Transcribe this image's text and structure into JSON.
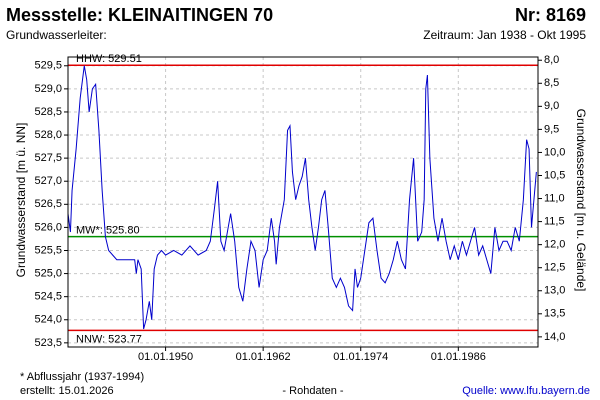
{
  "chart_data": {
    "type": "line",
    "title": "Messstelle: KLEINAITINGEN 70",
    "number": "Nr: 8169",
    "subtitle_left": "Grundwasserleiter:",
    "subtitle_right": "Zeitraum: Jan 1938 - Okt 1995",
    "ylabel": "Grundwasserstand [m ü. NN]",
    "y2label": "Grundwasserstand [m u. Gelände]",
    "footnote": "* Abflussjahr (1937-1994)",
    "created": "erstellt:  15.01.2026",
    "note": "- Rohdaten -",
    "source": "Quelle:  www.lfu.bayern.de",
    "color": "#0000cc",
    "grid": true,
    "xlim": [
      1938.0,
      1995.8
    ],
    "xticks": [
      {
        "value": 1950,
        "label": "01.01.1950"
      },
      {
        "value": 1962,
        "label": "01.01.1962"
      },
      {
        "value": 1974,
        "label": "01.01.1974"
      },
      {
        "value": 1986,
        "label": "01.01.1986"
      }
    ],
    "ylim": [
      523.41,
      529.69
    ],
    "yticks": [
      {
        "value": 523.5,
        "label": "523,5"
      },
      {
        "value": 524.0,
        "label": "524,0"
      },
      {
        "value": 524.5,
        "label": "524,5"
      },
      {
        "value": 525.0,
        "label": "525,0"
      },
      {
        "value": 525.5,
        "label": "525,5"
      },
      {
        "value": 526.0,
        "label": "526,0"
      },
      {
        "value": 526.5,
        "label": "526,5"
      },
      {
        "value": 527.0,
        "label": "527,0"
      },
      {
        "value": 527.5,
        "label": "527,5"
      },
      {
        "value": 528.0,
        "label": "528,0"
      },
      {
        "value": 528.5,
        "label": "528,5"
      },
      {
        "value": 529.0,
        "label": "529,0"
      },
      {
        "value": 529.5,
        "label": "529,5"
      }
    ],
    "y2lim": [
      14.22,
      7.93
    ],
    "y2ticks": [
      {
        "value": 8.0,
        "label": "8,0"
      },
      {
        "value": 8.5,
        "label": "8,5"
      },
      {
        "value": 9.0,
        "label": "9,0"
      },
      {
        "value": 9.5,
        "label": "9,5"
      },
      {
        "value": 10.0,
        "label": "10,0"
      },
      {
        "value": 10.5,
        "label": "10,5"
      },
      {
        "value": 11.0,
        "label": "11,0"
      },
      {
        "value": 11.5,
        "label": "11,5"
      },
      {
        "value": 12.0,
        "label": "12,0"
      },
      {
        "value": 12.5,
        "label": "12,5"
      },
      {
        "value": 13.0,
        "label": "13,0"
      },
      {
        "value": 13.5,
        "label": "13,5"
      },
      {
        "value": 14.0,
        "label": "14,0"
      }
    ],
    "hlines": [
      {
        "label": "HHW: 529.51",
        "value": 529.51,
        "color": "#e00000"
      },
      {
        "label": "MW*: 525.80",
        "value": 525.8,
        "color": "#009000"
      },
      {
        "label": "NNW: 523.77",
        "value": 523.77,
        "color": "#e00000"
      }
    ],
    "x": [
      1938.0,
      1938.3,
      1938.5,
      1939.0,
      1939.5,
      1940.0,
      1940.3,
      1940.6,
      1941.0,
      1941.4,
      1941.8,
      1942.2,
      1942.6,
      1943.0,
      1943.5,
      1944.0,
      1946.2,
      1946.4,
      1946.6,
      1947.0,
      1947.3,
      1947.6,
      1948.0,
      1948.3,
      1948.6,
      1949.0,
      1949.5,
      1950.0,
      1951.0,
      1952.0,
      1953.0,
      1954.0,
      1955.0,
      1955.5,
      1956.0,
      1956.4,
      1956.8,
      1957.2,
      1958.0,
      1958.5,
      1959.0,
      1959.5,
      1960.0,
      1960.5,
      1961.0,
      1961.5,
      1962.0,
      1962.5,
      1963.0,
      1963.4,
      1963.6,
      1964.0,
      1964.6,
      1965.0,
      1965.3,
      1965.6,
      1966.0,
      1966.4,
      1966.8,
      1967.2,
      1967.6,
      1968.0,
      1968.4,
      1968.8,
      1969.2,
      1969.6,
      1970.0,
      1970.5,
      1971.0,
      1971.5,
      1972.0,
      1972.5,
      1973.0,
      1973.3,
      1973.6,
      1974.0,
      1974.5,
      1975.0,
      1975.5,
      1976.0,
      1976.5,
      1977.0,
      1977.5,
      1978.0,
      1978.5,
      1979.0,
      1979.5,
      1980.0,
      1980.5,
      1981.0,
      1981.5,
      1981.8,
      1982.0,
      1982.2,
      1982.5,
      1983.0,
      1983.5,
      1984.0,
      1984.5,
      1985.0,
      1985.5,
      1986.0,
      1986.5,
      1987.0,
      1987.5,
      1988.0,
      1988.5,
      1989.0,
      1989.5,
      1990.0,
      1990.5,
      1991.0,
      1991.5,
      1992.0,
      1992.5,
      1993.0,
      1993.5,
      1994.0,
      1994.4,
      1994.7,
      1995.0,
      1995.3,
      1995.6
    ],
    "values": [
      526.3,
      525.9,
      526.8,
      527.7,
      528.8,
      529.5,
      529.2,
      528.5,
      529.0,
      529.1,
      528.1,
      526.8,
      525.8,
      525.5,
      525.4,
      525.3,
      525.3,
      525.0,
      525.3,
      525.1,
      523.8,
      524.0,
      524.4,
      524.0,
      525.1,
      525.4,
      525.5,
      525.4,
      525.5,
      525.4,
      525.6,
      525.4,
      525.5,
      525.7,
      526.4,
      527.0,
      525.7,
      525.5,
      526.3,
      525.7,
      524.7,
      524.4,
      525.1,
      525.7,
      525.5,
      524.7,
      525.3,
      525.5,
      526.2,
      525.7,
      525.2,
      526.0,
      526.6,
      528.1,
      528.2,
      527.2,
      526.6,
      526.9,
      527.1,
      527.5,
      526.6,
      526.0,
      525.5,
      526.0,
      526.6,
      526.8,
      526.0,
      524.9,
      524.7,
      524.9,
      524.7,
      524.3,
      524.2,
      525.1,
      524.7,
      524.9,
      525.5,
      526.1,
      526.2,
      525.5,
      524.9,
      524.8,
      525.0,
      525.3,
      525.7,
      525.3,
      525.1,
      526.6,
      527.5,
      525.7,
      525.9,
      526.6,
      529.0,
      529.3,
      527.5,
      526.2,
      525.7,
      526.2,
      525.7,
      525.3,
      525.6,
      525.3,
      525.7,
      525.4,
      525.7,
      526.0,
      525.4,
      525.6,
      525.3,
      525.0,
      526.0,
      525.5,
      525.7,
      525.7,
      525.5,
      526.0,
      525.7,
      526.6,
      527.9,
      527.7,
      526.0,
      526.6,
      527.2
    ]
  }
}
